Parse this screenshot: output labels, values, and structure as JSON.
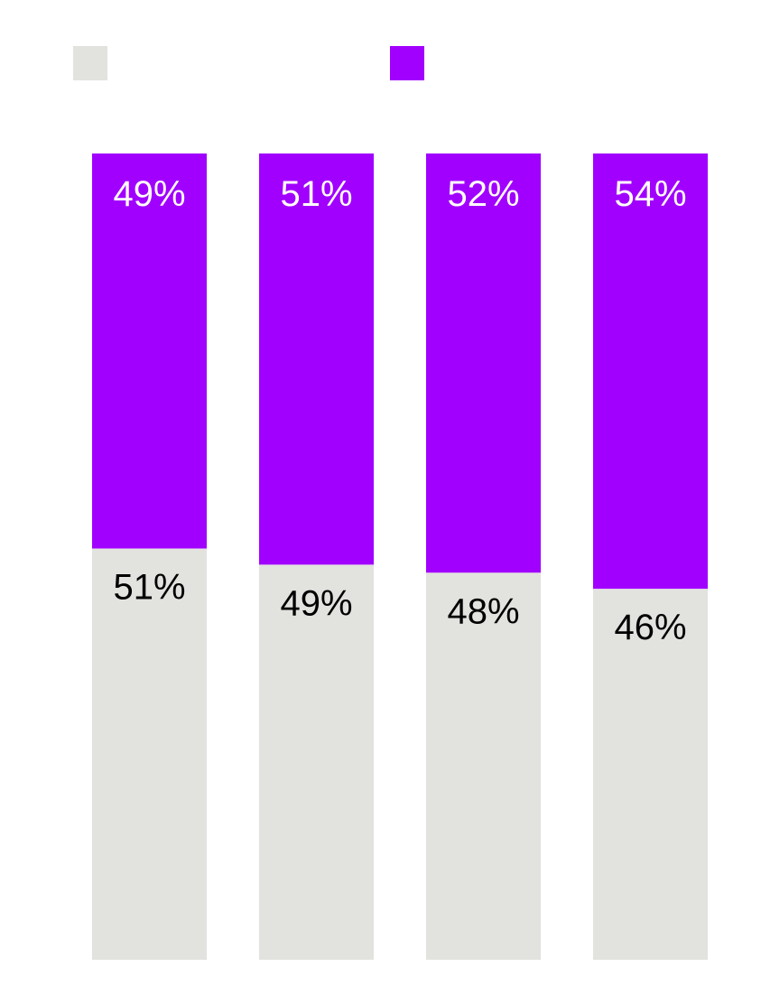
{
  "colors": {
    "background": "#ffffff",
    "series_bottom": "#e2e2df",
    "series_top": "#a100ff",
    "label_on_top": "#ffffff",
    "label_on_bottom": "#000000"
  },
  "legend": {
    "placement": "top-left",
    "items": [
      {
        "swatch_color": "#e2e2df",
        "label": ""
      },
      {
        "swatch_color": "#a100ff",
        "label": ""
      }
    ]
  },
  "chart_data": {
    "type": "bar",
    "stacked": true,
    "normalized": true,
    "categories": [
      "",
      "",
      "",
      ""
    ],
    "series": [
      {
        "values": [
          51,
          49,
          48,
          46
        ],
        "labels": [
          "51%",
          "49%",
          "48%",
          "46%"
        ],
        "color": "#e2e2df"
      },
      {
        "values": [
          49,
          51,
          52,
          54
        ],
        "labels": [
          "49%",
          "51%",
          "52%",
          "54%"
        ],
        "color": "#a100ff"
      }
    ],
    "ylim": [
      0,
      100
    ],
    "grid": false,
    "axes_visible": false,
    "title": "",
    "xlabel": "",
    "ylabel": ""
  }
}
